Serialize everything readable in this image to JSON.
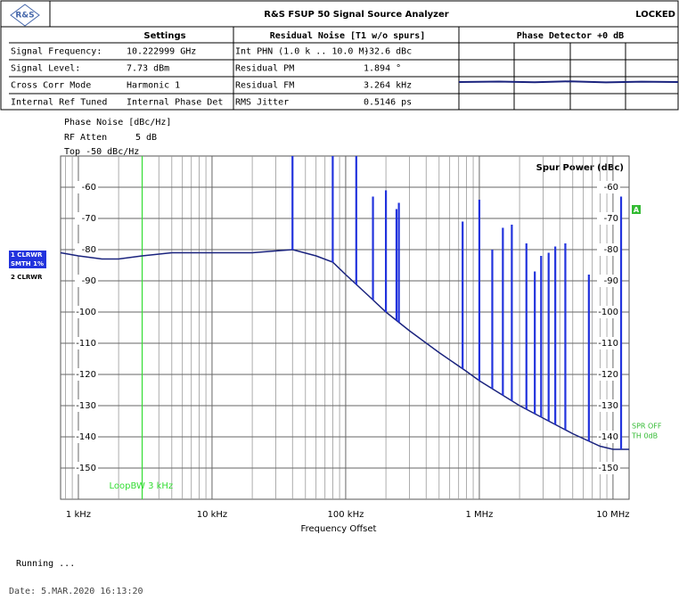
{
  "header": {
    "title": "R&S FSUP 50 Signal Source Analyzer",
    "status": "LOCKED"
  },
  "table": {
    "headings": [
      "Settings",
      "Residual Noise [T1 w/o spurs]",
      "Phase Detector +0 dB"
    ],
    "rows": [
      [
        "Signal Frequency:",
        "10.222999 GHz",
        "Int PHN (1.0 k .. 10.0 M)",
        "-32.6 dBc"
      ],
      [
        "Signal Level:",
        "7.73 dBm",
        "Residual PM",
        "1.894 °"
      ],
      [
        "Cross Corr Mode",
        "Harmonic 1",
        "Residual FM",
        "3.264 kHz"
      ],
      [
        "Internal Ref Tuned",
        "Internal Phase Det",
        "RMS Jitter",
        "0.5146 ps"
      ]
    ]
  },
  "side_labels": [
    "1 CLRWR",
    "SMTH 1%",
    "2 CLRWR"
  ],
  "footer": {
    "status": "Running ...",
    "date": "Date: 5.MAR.2020  16:13:20"
  },
  "chart_data": {
    "type": "line",
    "y_label": "Phase Noise [dBc/Hz]",
    "rf_atten_label": "RF Atten",
    "rf_atten": "5 dB",
    "top": "Top -50 dBc/Hz",
    "y2_label": "Spur Power (dBc)",
    "x_label": "Frequency Offset",
    "log_x": true,
    "grid": true,
    "xlim": [
      736,
      13200000
    ],
    "xticks": [
      {
        "value": 1000,
        "label": "1 kHz"
      },
      {
        "value": 10000,
        "label": "10 kHz"
      },
      {
        "value": 100000,
        "label": "100 kHz"
      },
      {
        "value": 1000000,
        "label": "1 MHz"
      },
      {
        "value": 10000000,
        "label": "10 MHz"
      }
    ],
    "xminor_ticks": [
      800,
      900,
      2000,
      3000,
      4000,
      5000,
      6000,
      7000,
      8000,
      9000,
      20000,
      30000,
      40000,
      50000,
      60000,
      70000,
      80000,
      90000,
      200000,
      300000,
      400000,
      500000,
      600000,
      700000,
      800000,
      900000,
      2000000,
      3000000,
      4000000,
      5000000,
      6000000,
      7000000,
      8000000,
      9000000
    ],
    "ylim": [
      -160,
      -50
    ],
    "yticks": [
      -60,
      -70,
      -80,
      -90,
      -100,
      -110,
      -120,
      -130,
      -140,
      -150
    ],
    "y2lim": [
      -160,
      -50
    ],
    "y2ticks": [
      -60,
      -70,
      -80,
      -90,
      -100,
      -110,
      -120,
      -130,
      -140,
      -150
    ],
    "x": [
      736,
      1000,
      1500,
      2000,
      3000,
      5000,
      10000,
      20000,
      40000,
      60000,
      80000,
      100000,
      150000,
      200000,
      300000,
      500000,
      800000,
      1000000,
      2000000,
      3000000,
      5000000,
      8000000,
      10000000,
      13200000
    ],
    "series": [
      {
        "color": "#1a237e",
        "values": [
          -81,
          -82,
          -83,
          -83,
          -82,
          -81,
          -81,
          -81,
          -80,
          -82,
          -84,
          -88,
          -95,
          -100,
          -106,
          -113,
          -119,
          -122,
          -130,
          -134,
          -139,
          -143,
          -144,
          -144
        ]
      }
    ],
    "spurs": {
      "color": "#2233dd",
      "x": [
        40000,
        80000,
        120000,
        160000,
        200000,
        240000,
        250000,
        750000,
        1000000,
        1250000,
        1500000,
        1750000,
        2250000,
        2600000,
        2900000,
        3300000,
        3700000,
        4400000,
        6600000,
        11500000
      ],
      "values": [
        -50,
        -50,
        -50,
        -63,
        -61,
        -67,
        -65,
        -71,
        -64,
        -80,
        -73,
        -72,
        -78,
        -87,
        -82,
        -81,
        -79,
        -78,
        -88,
        -63
      ]
    },
    "marker": {
      "x": 3000,
      "label": "LoopBW 3 kHz",
      "color": "#33dd33"
    },
    "annotations": [
      "SPR OFF",
      "TH 0dB"
    ],
    "badge": "A"
  }
}
